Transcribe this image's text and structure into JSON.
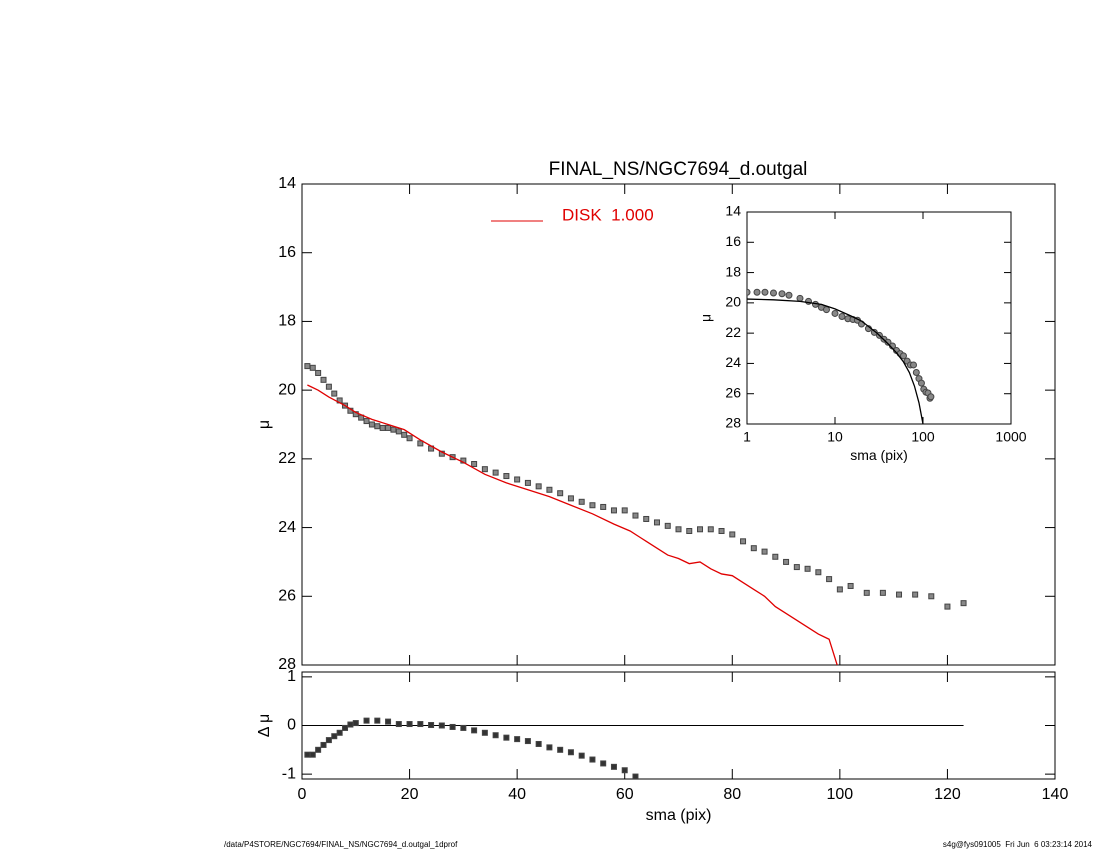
{
  "chart_data": [
    {
      "type": "scatter",
      "title": "FINAL_NS/NGC7694_d.outgal",
      "y_label": "μ",
      "xlim": [
        0,
        140
      ],
      "xticks": [
        0,
        20,
        40,
        60,
        80,
        100,
        120,
        140
      ],
      "ylim": [
        28,
        14
      ],
      "yticks": [
        14,
        16,
        18,
        20,
        22,
        24,
        26,
        28
      ],
      "series": [
        {
          "mode": "markers",
          "marker": "square",
          "color": "#888888",
          "x": [
            1,
            2,
            3,
            4,
            5,
            6,
            7,
            8,
            9,
            10,
            11,
            12,
            13,
            14,
            15,
            16,
            17,
            18,
            19,
            20,
            22,
            24,
            26,
            28,
            30,
            32,
            34,
            36,
            38,
            40,
            42,
            44,
            46,
            48,
            50,
            52,
            54,
            56,
            58,
            60,
            62,
            64,
            66,
            68,
            70,
            72,
            74,
            76,
            78,
            80,
            82,
            84,
            86,
            88,
            90,
            92,
            94,
            96,
            98,
            100,
            102,
            105,
            108,
            111,
            114,
            117,
            120,
            123
          ],
          "values": [
            19.3,
            19.35,
            19.5,
            19.7,
            19.9,
            20.1,
            20.3,
            20.45,
            20.6,
            20.7,
            20.8,
            20.9,
            21.0,
            21.05,
            21.1,
            21.1,
            21.15,
            21.2,
            21.3,
            21.4,
            21.55,
            21.7,
            21.85,
            21.95,
            22.05,
            22.15,
            22.3,
            22.4,
            22.5,
            22.6,
            22.7,
            22.8,
            22.9,
            23.0,
            23.15,
            23.25,
            23.35,
            23.4,
            23.5,
            23.5,
            23.65,
            23.75,
            23.85,
            23.95,
            24.05,
            24.1,
            24.05,
            24.05,
            24.1,
            24.2,
            24.4,
            24.6,
            24.7,
            24.85,
            25.0,
            25.15,
            25.2,
            25.3,
            25.5,
            25.8,
            25.7,
            25.9,
            25.9,
            25.95,
            25.95,
            26.0,
            26.3,
            26.2
          ]
        },
        {
          "mode": "line",
          "name": "DISK  1.000",
          "color": "#e00000",
          "x": [
            1,
            3,
            5,
            8,
            10,
            13,
            16,
            19,
            22,
            26,
            30,
            34,
            38,
            42,
            46,
            50,
            54,
            58,
            61,
            63,
            64,
            66,
            68,
            70,
            72,
            74,
            76,
            78,
            80,
            82,
            84,
            86,
            88,
            90,
            92,
            94,
            96,
            98,
            99.5
          ],
          "values": [
            19.85,
            20.0,
            20.2,
            20.45,
            20.65,
            20.85,
            21.0,
            21.15,
            21.45,
            21.8,
            22.1,
            22.45,
            22.7,
            22.9,
            23.1,
            23.35,
            23.6,
            23.9,
            24.1,
            24.3,
            24.4,
            24.6,
            24.8,
            24.9,
            25.05,
            25.0,
            25.2,
            25.35,
            25.4,
            25.6,
            25.8,
            26.0,
            26.3,
            26.5,
            26.7,
            26.9,
            27.1,
            27.25,
            28.0
          ]
        }
      ]
    },
    {
      "type": "scatter",
      "log_x": true,
      "x_label": "sma (pix)",
      "y_label": "μ",
      "xlim": [
        1,
        1000
      ],
      "xticks": [
        1,
        10,
        100,
        1000
      ],
      "ylim": [
        28,
        14
      ],
      "yticks": [
        14,
        16,
        18,
        20,
        22,
        24,
        26,
        28
      ],
      "series": [
        {
          "mode": "markers",
          "marker": "circle",
          "color": "#888888",
          "x": [
            1,
            1.3,
            1.6,
            2,
            2.5,
            3,
            4,
            5,
            6,
            7,
            8,
            10,
            12,
            14,
            16,
            18,
            20,
            24,
            28,
            32,
            36,
            40,
            45,
            50,
            55,
            60,
            66,
            72,
            78,
            84,
            90,
            96,
            102,
            108,
            114,
            120,
            123
          ],
          "values": [
            19.3,
            19.3,
            19.3,
            19.35,
            19.4,
            19.5,
            19.7,
            19.9,
            20.1,
            20.3,
            20.45,
            20.7,
            20.9,
            21.05,
            21.1,
            21.15,
            21.4,
            21.7,
            21.95,
            22.15,
            22.4,
            22.6,
            22.85,
            23.15,
            23.35,
            23.5,
            23.85,
            24.1,
            24.1,
            24.6,
            25.0,
            25.3,
            25.7,
            25.9,
            25.95,
            26.3,
            26.2
          ]
        },
        {
          "mode": "line",
          "color": "#000000",
          "x": [
            1,
            2,
            4,
            7,
            10,
            15,
            20,
            30,
            40,
            50,
            60,
            70,
            80,
            90,
            100
          ],
          "values": [
            19.75,
            19.8,
            19.9,
            20.1,
            20.4,
            20.85,
            21.2,
            22.0,
            22.7,
            23.3,
            23.9,
            24.6,
            25.5,
            26.6,
            28.0
          ]
        }
      ]
    },
    {
      "type": "scatter",
      "x_label": "sma (pix)",
      "y_label": "Δ μ",
      "xlim": [
        0,
        140
      ],
      "xticks": [
        0,
        20,
        40,
        60,
        80,
        100,
        120,
        140
      ],
      "ylim": [
        -1.1,
        1.1
      ],
      "yticks": [
        -1,
        0,
        1
      ],
      "series": [
        {
          "mode": "markers",
          "marker": "square",
          "color": "#333333",
          "x": [
            1,
            2,
            3,
            4,
            5,
            6,
            7,
            8,
            9,
            10,
            12,
            14,
            16,
            18,
            20,
            22,
            24,
            26,
            28,
            30,
            32,
            34,
            36,
            38,
            40,
            42,
            44,
            46,
            48,
            50,
            52,
            54,
            56,
            58,
            60,
            62
          ],
          "values": [
            -0.6,
            -0.6,
            -0.5,
            -0.4,
            -0.3,
            -0.22,
            -0.15,
            -0.05,
            0.02,
            0.05,
            0.1,
            0.1,
            0.08,
            0.03,
            0.03,
            0.03,
            0.01,
            0.0,
            -0.03,
            -0.05,
            -0.1,
            -0.15,
            -0.2,
            -0.25,
            -0.28,
            -0.32,
            -0.38,
            -0.45,
            -0.5,
            -0.55,
            -0.62,
            -0.7,
            -0.78,
            -0.85,
            -0.92,
            -1.05
          ]
        }
      ]
    }
  ],
  "footer": {
    "left": "/data/P4STORE/NGC7694/FINAL_NS/NGC7694_d.outgal_1dprof",
    "right": "s4g@fys091005  Fri Jun  6 03:23:14 2014"
  }
}
